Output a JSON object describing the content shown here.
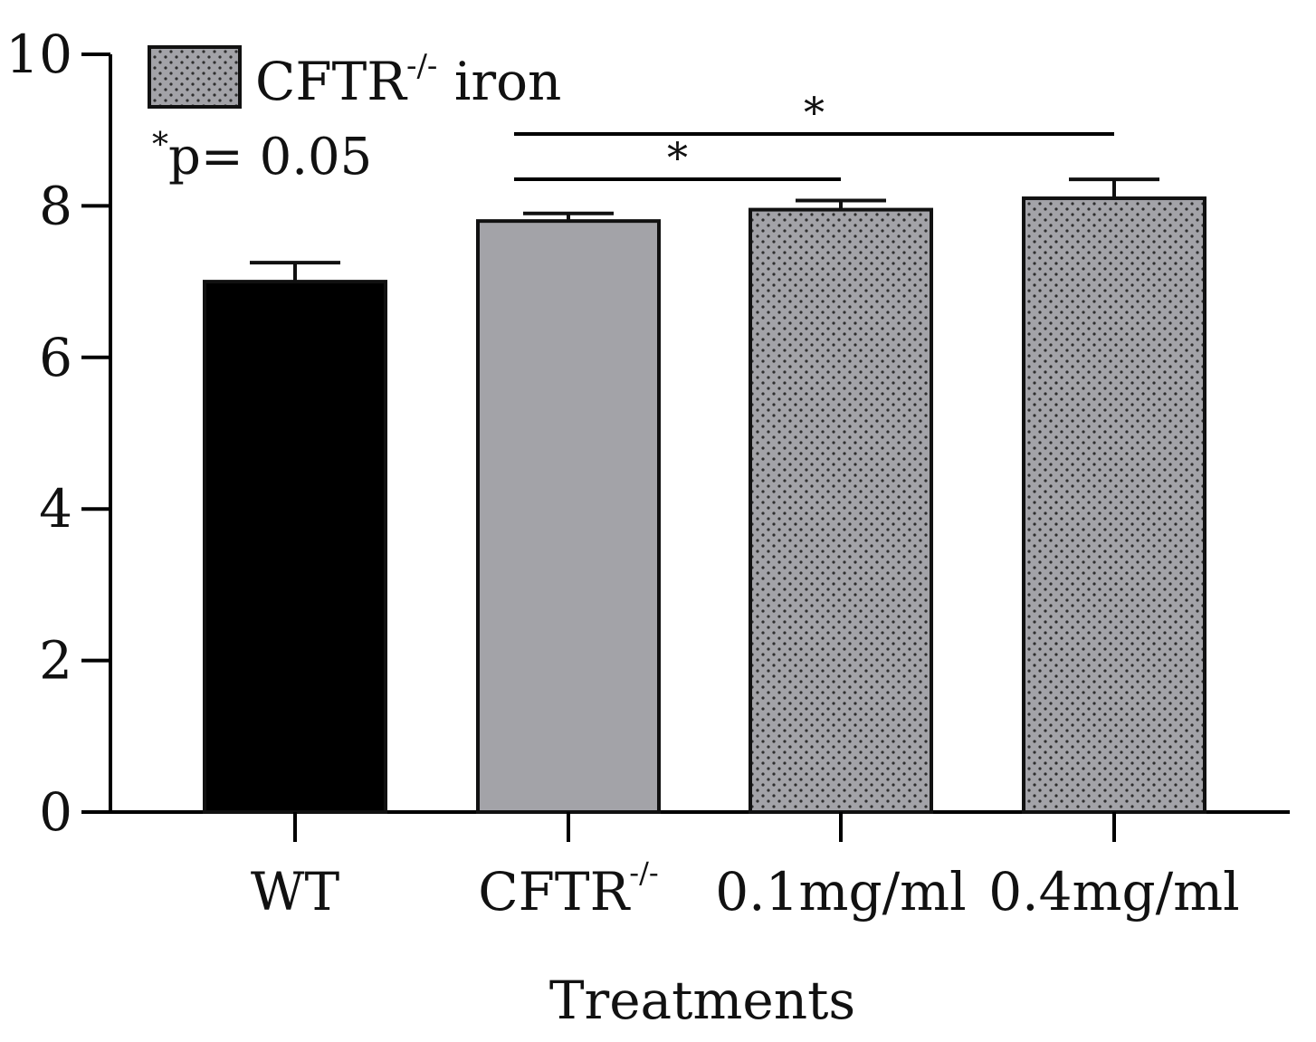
{
  "chart_data": {
    "type": "bar",
    "title": "",
    "xlabel": "Treatments",
    "ylabel": "",
    "ylim": [
      0,
      10
    ],
    "yticks": [
      0,
      2,
      4,
      6,
      8,
      10
    ],
    "grid": false,
    "categories": [
      {
        "label": "WT",
        "sup": ""
      },
      {
        "label": "CFTR",
        "sup": "-/-"
      },
      {
        "label": "0.1mg/ml",
        "sup": ""
      },
      {
        "label": "0.4mg/ml",
        "sup": ""
      }
    ],
    "values": [
      7.0,
      7.8,
      7.95,
      8.1
    ],
    "errors": [
      0.25,
      0.1,
      0.12,
      0.25
    ],
    "bar_styles": [
      {
        "fill": "#000000",
        "pattern": "none"
      },
      {
        "fill": "#a3a3a8",
        "pattern": "none"
      },
      {
        "fill": "#a3a3a8",
        "pattern": "dots"
      },
      {
        "fill": "#a3a3a8",
        "pattern": "dots"
      }
    ],
    "legend": {
      "position": "top-left",
      "entries": [
        {
          "text": "CFTR",
          "sup": "-/-",
          "suffix": " iron",
          "fill": "#a3a3a8",
          "pattern": "dots"
        }
      ]
    },
    "annotation": {
      "star": "*",
      "text": "p= 0.05"
    },
    "significance": [
      {
        "from": 1,
        "to": 2,
        "label": "*",
        "level": 1
      },
      {
        "from": 1,
        "to": 3,
        "label": "*",
        "level": 2
      }
    ]
  },
  "colors": {
    "axis": "#000000",
    "bar_edge": "#111111",
    "gray": "#a3a3a8",
    "black": "#000000"
  }
}
